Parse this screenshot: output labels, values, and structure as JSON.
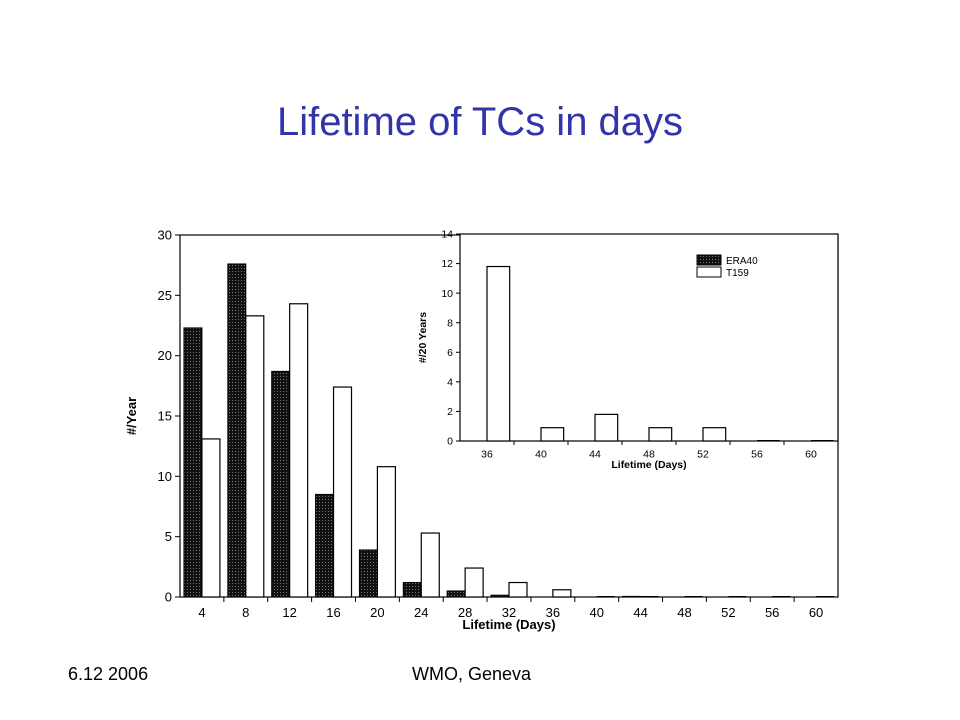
{
  "slide": {
    "title": "Lifetime of TCs in days",
    "footer_date": "6.12 2006",
    "footer_place": "WMO, Geneva"
  },
  "colors": {
    "title": "#3333aa",
    "era40_fill": "#111111",
    "t159_fill": "#ffffff"
  },
  "chart_data": [
    {
      "type": "bar",
      "xlabel": "Lifetime (Days)",
      "ylabel": "#/Year",
      "categories": [
        "4",
        "8",
        "12",
        "16",
        "20",
        "24",
        "28",
        "32",
        "36",
        "40",
        "44",
        "48",
        "52",
        "56",
        "60"
      ],
      "ylim": [
        0,
        30
      ],
      "yticks": [
        0,
        5,
        10,
        15,
        20,
        25,
        30
      ],
      "series": [
        {
          "name": "ERA40",
          "values": [
            22.3,
            27.6,
            18.7,
            8.5,
            3.9,
            1.2,
            0.5,
            0.15,
            0,
            0,
            0.05,
            0,
            0,
            0,
            0
          ]
        },
        {
          "name": "T159",
          "values": [
            13.1,
            23.3,
            24.3,
            17.4,
            10.8,
            5.3,
            2.4,
            1.2,
            0.6,
            0,
            0,
            0,
            0,
            0,
            0
          ]
        }
      ]
    },
    {
      "type": "bar",
      "xlabel": "Lifetime (Days)",
      "ylabel": "#/20 Years",
      "categories": [
        "36",
        "40",
        "44",
        "48",
        "52",
        "56",
        "60"
      ],
      "ylim": [
        0,
        14
      ],
      "yticks": [
        0,
        2,
        4,
        6,
        8,
        10,
        12,
        14
      ],
      "legend": "top-right",
      "series": [
        {
          "name": "ERA40",
          "values": [
            0,
            0,
            0,
            0,
            0,
            0,
            0
          ]
        },
        {
          "name": "T159",
          "values": [
            11.8,
            0.9,
            1.8,
            0.9,
            0.9,
            0,
            0
          ]
        }
      ]
    }
  ]
}
